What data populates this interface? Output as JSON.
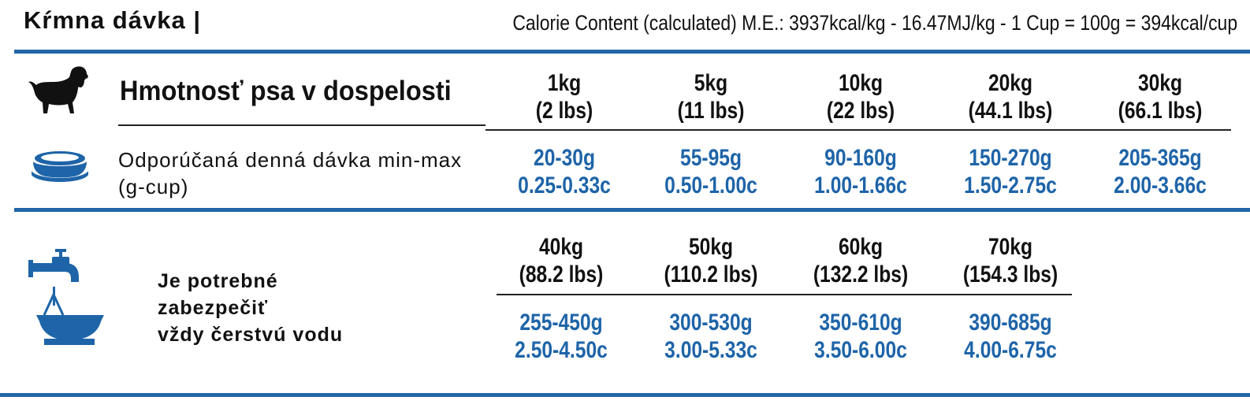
{
  "title": "Kŕmna dávka |",
  "calorie_content": "Calorie Content (calculated) M.E.: 3937kcal/kg - 16.47MJ/kg - 1 Cup = 100g = 394kcal/cup",
  "colors": {
    "accent": "#2266a8",
    "dose_text": "#1e64a8"
  },
  "labels": {
    "adult_weight": "Hmotnosť psa v dospelosti",
    "recommended_line1": "Odporúčaná denná dávka min-max",
    "recommended_line2": "(g-cup)",
    "water_line1": "Je potrebné",
    "water_line2": "zabezpečiť",
    "water_line3": "vždy čerstvú vodu"
  },
  "icons": {
    "dog": "dog-icon",
    "bowl": "food-bowl-icon",
    "water": "water-tap-icon"
  },
  "row1": [
    {
      "kg": "1kg",
      "lbs": "(2 lbs)",
      "grams": "20-30g",
      "cups": "0.25-0.33c"
    },
    {
      "kg": "5kg",
      "lbs": "(11 lbs)",
      "grams": "55-95g",
      "cups": "0.50-1.00c"
    },
    {
      "kg": "10kg",
      "lbs": "(22 lbs)",
      "grams": "90-160g",
      "cups": "1.00-1.66c"
    },
    {
      "kg": "20kg",
      "lbs": "(44.1 lbs)",
      "grams": "150-270g",
      "cups": "1.50-2.75c"
    },
    {
      "kg": "30kg",
      "lbs": "(66.1 lbs)",
      "grams": "205-365g",
      "cups": "2.00-3.66c"
    }
  ],
  "row2": [
    {
      "kg": "40kg",
      "lbs": "(88.2 lbs)",
      "grams": "255-450g",
      "cups": "2.50-4.50c"
    },
    {
      "kg": "50kg",
      "lbs": "(110.2 lbs)",
      "grams": "300-530g",
      "cups": "3.00-5.33c"
    },
    {
      "kg": "60kg",
      "lbs": "(132.2 lbs)",
      "grams": "350-610g",
      "cups": "3.50-6.00c"
    },
    {
      "kg": "70kg",
      "lbs": "(154.3 lbs)",
      "grams": "390-685g",
      "cups": "4.00-6.75c"
    }
  ]
}
